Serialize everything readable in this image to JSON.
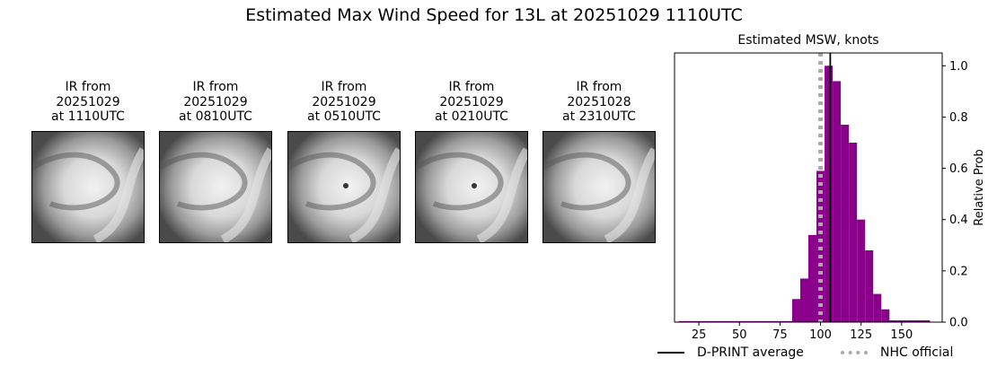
{
  "suptitle": "Estimated Max Wind Speed for 13L at 20251029 1110UTC",
  "ir_panels": [
    {
      "line1": "IR from",
      "line2": "20251029",
      "line3": "at 1110UTC"
    },
    {
      "line1": "IR from",
      "line2": "20251029",
      "line3": "at 0810UTC"
    },
    {
      "line1": "IR from",
      "line2": "20251029",
      "line3": "at 0510UTC"
    },
    {
      "line1": "IR from",
      "line2": "20251029",
      "line3": "at 0210UTC"
    },
    {
      "line1": "IR from",
      "line2": "20251028",
      "line3": "at 2310UTC"
    }
  ],
  "legend": {
    "dprint": "D-PRINT average",
    "nhc": "NHC official"
  },
  "chart_data": {
    "type": "bar",
    "title": "Estimated MSW, knots",
    "xlabel": "",
    "ylabel": "Relative Prob",
    "xlim": [
      10,
      175
    ],
    "ylim": [
      0,
      1.05
    ],
    "x_ticks": [
      25,
      50,
      75,
      100,
      125,
      150
    ],
    "y_ticks": [
      0.0,
      0.2,
      0.4,
      0.6,
      0.8,
      1.0
    ],
    "y_tick_labels": [
      "0.0",
      "0.2",
      "0.4",
      "0.6",
      "0.8",
      "1.0"
    ],
    "bin_width": 5,
    "bins": [
      {
        "x": 15,
        "y": 0.004
      },
      {
        "x": 20,
        "y": 0.004
      },
      {
        "x": 25,
        "y": 0.004
      },
      {
        "x": 30,
        "y": 0.004
      },
      {
        "x": 35,
        "y": 0.004
      },
      {
        "x": 40,
        "y": 0.004
      },
      {
        "x": 45,
        "y": 0.004
      },
      {
        "x": 50,
        "y": 0.004
      },
      {
        "x": 55,
        "y": 0.004
      },
      {
        "x": 60,
        "y": 0.004
      },
      {
        "x": 65,
        "y": 0.004
      },
      {
        "x": 70,
        "y": 0.004
      },
      {
        "x": 75,
        "y": 0.004
      },
      {
        "x": 80,
        "y": 0.004
      },
      {
        "x": 85,
        "y": 0.09
      },
      {
        "x": 90,
        "y": 0.17
      },
      {
        "x": 95,
        "y": 0.34
      },
      {
        "x": 100,
        "y": 0.59
      },
      {
        "x": 105,
        "y": 1.0
      },
      {
        "x": 110,
        "y": 0.94
      },
      {
        "x": 115,
        "y": 0.77
      },
      {
        "x": 120,
        "y": 0.7
      },
      {
        "x": 125,
        "y": 0.4
      },
      {
        "x": 130,
        "y": 0.28
      },
      {
        "x": 135,
        "y": 0.11
      },
      {
        "x": 140,
        "y": 0.05
      },
      {
        "x": 145,
        "y": 0.007
      },
      {
        "x": 150,
        "y": 0.007
      },
      {
        "x": 155,
        "y": 0.007
      },
      {
        "x": 160,
        "y": 0.007
      },
      {
        "x": 165,
        "y": 0.007
      }
    ],
    "bar_color": "#8b008b",
    "dprint_average": 106,
    "nhc_official": 100,
    "dprint_color": "#000000",
    "nhc_color": "#aaaaaa"
  }
}
